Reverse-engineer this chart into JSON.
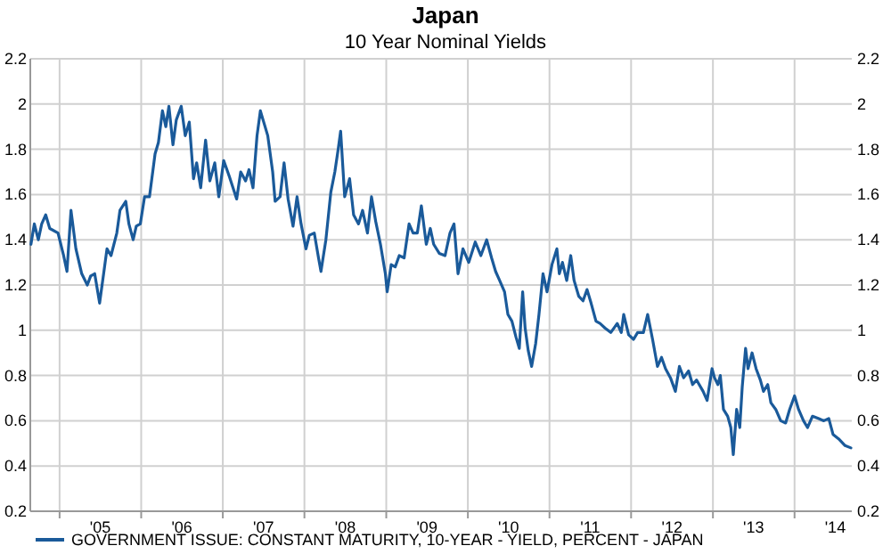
{
  "chart_data": {
    "type": "line",
    "title": "Japan",
    "subtitle": "10 Year Nominal Yields",
    "xlim": [
      "2004-08-23",
      "2014-09-14"
    ],
    "xticks": [
      {
        "value": "2005-01-01",
        "label": null
      },
      {
        "value": "2005-07-02",
        "label": "'05"
      },
      {
        "value": "2006-01-01",
        "label": null
      },
      {
        "value": "2006-07-02",
        "label": "'06"
      },
      {
        "value": "2007-01-01",
        "label": null
      },
      {
        "value": "2007-07-02",
        "label": "'07"
      },
      {
        "value": "2008-01-01",
        "label": null
      },
      {
        "value": "2008-07-02",
        "label": "'08"
      },
      {
        "value": "2009-01-01",
        "label": null
      },
      {
        "value": "2009-07-02",
        "label": "'09"
      },
      {
        "value": "2010-01-01",
        "label": null
      },
      {
        "value": "2010-07-02",
        "label": "'10"
      },
      {
        "value": "2011-01-01",
        "label": null
      },
      {
        "value": "2011-07-02",
        "label": "'11"
      },
      {
        "value": "2012-01-01",
        "label": null
      },
      {
        "value": "2012-07-02",
        "label": "'12"
      },
      {
        "value": "2013-01-01",
        "label": null
      },
      {
        "value": "2013-07-02",
        "label": "'13"
      },
      {
        "value": "2014-01-01",
        "label": null
      },
      {
        "value": "2014-07-02",
        "label": "'14"
      }
    ],
    "ylim": [
      0.2,
      2.2
    ],
    "yticks": [
      0.2,
      0.4,
      0.6,
      0.8,
      1,
      1.2,
      1.4,
      1.6,
      1.8,
      2,
      2.2
    ],
    "y2lim": [
      0.2,
      2.2
    ],
    "y2ticks": [
      0.2,
      0.4,
      0.6,
      0.8,
      1,
      1.2,
      1.4,
      1.6,
      1.8,
      2,
      2.2
    ],
    "grid": true,
    "legend": "bottom",
    "marker": "none",
    "line_style": "solid",
    "series": [
      {
        "name": "GOVERNMENT ISSUE: CONSTANT MATURITY, 10-YEAR - YIELD, PERCENT - JAPAN",
        "color": "#1a5a9a",
        "x": [
          "2004-08-26",
          "2004-09-10",
          "2004-09-28",
          "2004-10-13",
          "2004-10-31",
          "2004-11-18",
          "2004-12-25",
          "2005-01-19",
          "2005-02-03",
          "2005-02-21",
          "2005-03-15",
          "2005-04-10",
          "2005-05-05",
          "2005-05-20",
          "2005-06-07",
          "2005-06-29",
          "2005-07-17",
          "2005-08-01",
          "2005-08-19",
          "2005-09-14",
          "2005-09-28",
          "2005-10-24",
          "2005-11-07",
          "2005-11-26",
          "2005-12-10",
          "2005-12-28",
          "2006-01-16",
          "2006-02-07",
          "2006-03-04",
          "2006-03-19",
          "2006-04-06",
          "2006-04-21",
          "2006-05-05",
          "2006-05-23",
          "2006-06-07",
          "2006-06-29",
          "2006-07-17",
          "2006-08-04",
          "2006-08-23",
          "2006-09-06",
          "2006-09-24",
          "2006-10-16",
          "2006-11-04",
          "2006-11-26",
          "2006-12-14",
          "2007-01-05",
          "2007-01-30",
          "2007-03-04",
          "2007-03-22",
          "2007-04-13",
          "2007-04-28",
          "2007-05-16",
          "2007-06-03",
          "2007-06-18",
          "2007-07-03",
          "2007-07-21",
          "2007-08-12",
          "2007-08-23",
          "2007-09-14",
          "2007-10-02",
          "2007-10-20",
          "2007-11-11",
          "2007-11-29",
          "2007-12-17",
          "2008-01-08",
          "2008-01-23",
          "2008-02-14",
          "2008-03-04",
          "2008-03-15",
          "2008-04-06",
          "2008-04-28",
          "2008-05-16",
          "2008-05-31",
          "2008-06-11",
          "2008-06-29",
          "2008-07-21",
          "2008-08-08",
          "2008-08-30",
          "2008-09-17",
          "2008-10-09",
          "2008-10-27",
          "2008-11-15",
          "2008-12-06",
          "2008-12-28",
          "2009-01-05",
          "2009-01-23",
          "2009-02-10",
          "2009-02-28",
          "2009-03-22",
          "2009-04-13",
          "2009-05-01",
          "2009-05-20",
          "2009-06-07",
          "2009-06-29",
          "2009-07-17",
          "2009-08-01",
          "2009-08-26",
          "2009-09-21",
          "2009-10-13",
          "2009-10-31",
          "2009-11-18",
          "2009-12-10",
          "2010-01-05",
          "2010-02-03",
          "2010-02-28",
          "2010-03-26",
          "2010-04-17",
          "2010-05-05",
          "2010-05-23",
          "2010-06-14",
          "2010-06-29",
          "2010-07-17",
          "2010-08-04",
          "2010-08-19",
          "2010-09-03",
          "2010-09-14",
          "2010-09-28",
          "2010-10-13",
          "2010-10-31",
          "2010-11-15",
          "2010-12-03",
          "2010-12-21",
          "2011-01-12",
          "2011-02-03",
          "2011-02-14",
          "2011-02-28",
          "2011-03-19",
          "2011-04-06",
          "2011-04-21",
          "2011-05-12",
          "2011-05-31",
          "2011-06-18",
          "2011-07-06",
          "2011-07-28",
          "2011-08-15",
          "2011-09-06",
          "2011-10-02",
          "2011-10-31",
          "2011-11-18",
          "2011-11-29",
          "2011-12-21",
          "2012-01-12",
          "2012-01-30",
          "2012-02-25",
          "2012-03-15",
          "2012-04-06",
          "2012-04-28",
          "2012-05-16",
          "2012-06-03",
          "2012-06-25",
          "2012-07-17",
          "2012-08-04",
          "2012-08-23",
          "2012-09-14",
          "2012-10-02",
          "2012-10-20",
          "2012-11-18",
          "2012-12-06",
          "2012-12-28",
          "2013-01-08",
          "2013-01-23",
          "2013-02-03",
          "2013-02-17",
          "2013-03-08",
          "2013-03-22",
          "2013-04-02",
          "2013-04-17",
          "2013-05-01",
          "2013-05-12",
          "2013-05-27",
          "2013-06-07",
          "2013-06-25",
          "2013-07-13",
          "2013-08-01",
          "2013-08-15",
          "2013-09-03",
          "2013-09-17",
          "2013-10-09",
          "2013-10-31",
          "2013-11-22",
          "2013-12-10",
          "2014-01-01",
          "2014-01-19",
          "2014-02-10",
          "2014-02-28",
          "2014-03-22",
          "2014-04-17",
          "2014-05-12",
          "2014-06-03",
          "2014-06-22",
          "2014-07-17",
          "2014-08-15",
          "2014-09-10"
        ],
        "values": [
          1.38,
          1.47,
          1.4,
          1.47,
          1.51,
          1.45,
          1.43,
          1.33,
          1.26,
          1.53,
          1.36,
          1.25,
          1.2,
          1.24,
          1.25,
          1.12,
          1.25,
          1.36,
          1.33,
          1.43,
          1.53,
          1.57,
          1.47,
          1.4,
          1.46,
          1.47,
          1.59,
          1.59,
          1.78,
          1.83,
          1.97,
          1.9,
          1.99,
          1.82,
          1.93,
          1.99,
          1.86,
          1.92,
          1.67,
          1.74,
          1.63,
          1.84,
          1.66,
          1.74,
          1.59,
          1.75,
          1.68,
          1.58,
          1.7,
          1.66,
          1.71,
          1.63,
          1.86,
          1.97,
          1.92,
          1.86,
          1.7,
          1.57,
          1.59,
          1.74,
          1.58,
          1.46,
          1.59,
          1.47,
          1.36,
          1.42,
          1.43,
          1.32,
          1.26,
          1.4,
          1.61,
          1.7,
          1.8,
          1.88,
          1.59,
          1.67,
          1.51,
          1.47,
          1.53,
          1.43,
          1.59,
          1.48,
          1.38,
          1.25,
          1.17,
          1.29,
          1.28,
          1.33,
          1.32,
          1.47,
          1.43,
          1.43,
          1.55,
          1.38,
          1.45,
          1.38,
          1.34,
          1.33,
          1.43,
          1.47,
          1.25,
          1.36,
          1.3,
          1.39,
          1.33,
          1.4,
          1.32,
          1.26,
          1.22,
          1.17,
          1.07,
          1.04,
          0.97,
          0.92,
          1.17,
          1.01,
          0.91,
          0.84,
          0.94,
          1.07,
          1.25,
          1.17,
          1.29,
          1.36,
          1.25,
          1.3,
          1.22,
          1.33,
          1.22,
          1.15,
          1.13,
          1.18,
          1.12,
          1.04,
          1.03,
          1.01,
          0.99,
          1.03,
          0.99,
          1.07,
          0.98,
          0.96,
          0.99,
          0.99,
          1.07,
          0.96,
          0.84,
          0.88,
          0.83,
          0.79,
          0.73,
          0.84,
          0.79,
          0.82,
          0.76,
          0.78,
          0.73,
          0.69,
          0.83,
          0.79,
          0.76,
          0.8,
          0.65,
          0.62,
          0.57,
          0.45,
          0.65,
          0.57,
          0.75,
          0.92,
          0.83,
          0.9,
          0.83,
          0.78,
          0.73,
          0.76,
          0.68,
          0.65,
          0.6,
          0.59,
          0.65,
          0.71,
          0.65,
          0.6,
          0.57,
          0.62,
          0.61,
          0.6,
          0.61,
          0.54,
          0.52,
          0.49,
          0.48
        ]
      }
    ]
  }
}
